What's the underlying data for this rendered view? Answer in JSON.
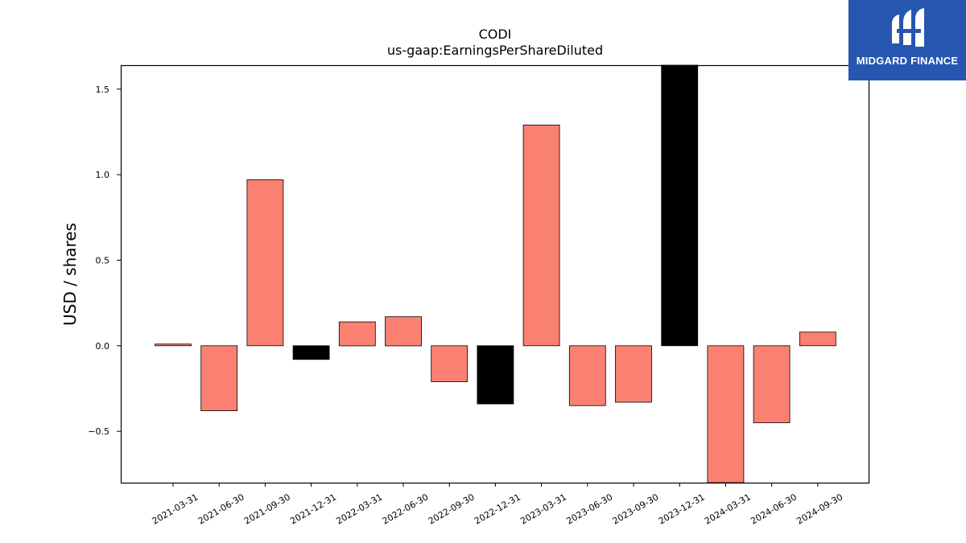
{
  "chart_data": {
    "type": "bar",
    "title": "CODI",
    "subtitle": "us-gaap:EarningsPerShareDiluted",
    "xlabel": "",
    "ylabel": "USD / shares",
    "categories": [
      "2021-03-31",
      "2021-06-30",
      "2021-09-30",
      "2021-12-31",
      "2022-03-31",
      "2022-06-30",
      "2022-09-30",
      "2022-12-31",
      "2023-03-31",
      "2023-06-30",
      "2023-09-30",
      "2023-12-31",
      "2024-03-31",
      "2024-06-30",
      "2024-09-30"
    ],
    "values": [
      0.01,
      -0.38,
      0.97,
      -0.08,
      0.14,
      0.17,
      -0.21,
      -0.34,
      1.29,
      -0.35,
      -0.33,
      1.65,
      -0.8,
      -0.45,
      0.08
    ],
    "highlighted": [
      "2021-12-31",
      "2022-12-31",
      "2023-12-31"
    ],
    "colors": {
      "default": "#fa8072",
      "highlight": "#000000"
    },
    "ylim": [
      -0.8,
      1.64
    ],
    "yticks": [
      -0.5,
      0.0,
      0.5,
      1.0,
      1.5
    ],
    "ytick_labels": [
      "−0.5",
      "0.0",
      "0.5",
      "1.0",
      "1.5"
    ],
    "grid": false,
    "legend": "none"
  },
  "logo": {
    "text": "MIDGARD FINANCE",
    "icon": "midgard-logo-icon",
    "background": "#2756b1"
  }
}
